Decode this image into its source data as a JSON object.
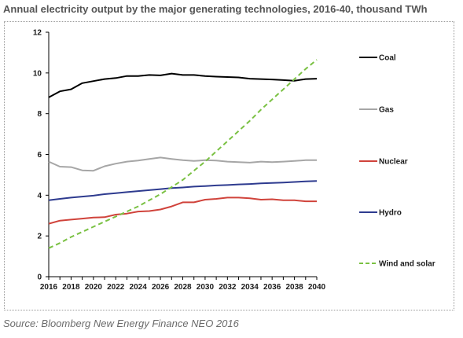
{
  "chart_data": {
    "type": "line",
    "title": "Annual electricity output by the major generating technologies, 2016-40, thousand TWh",
    "source": "Source: Bloomberg New Energy Finance NEO 2016",
    "xlabel": "",
    "ylabel": "",
    "x": [
      2016,
      2017,
      2018,
      2019,
      2020,
      2021,
      2022,
      2023,
      2024,
      2025,
      2026,
      2027,
      2028,
      2029,
      2030,
      2031,
      2032,
      2033,
      2034,
      2035,
      2036,
      2037,
      2038,
      2039,
      2040
    ],
    "xticks": [
      2016,
      2018,
      2020,
      2022,
      2024,
      2026,
      2028,
      2030,
      2032,
      2034,
      2036,
      2038,
      2040
    ],
    "ylim": [
      0,
      12
    ],
    "yticks": [
      0,
      2,
      4,
      6,
      8,
      10,
      12
    ],
    "grid": false,
    "legend_position": "right",
    "series": [
      {
        "name": "Coal",
        "color": "#000000",
        "dash": "solid",
        "values": [
          8.8,
          9.1,
          9.2,
          9.5,
          9.6,
          9.7,
          9.75,
          9.85,
          9.85,
          9.9,
          9.88,
          9.97,
          9.9,
          9.9,
          9.85,
          9.82,
          9.8,
          9.78,
          9.72,
          9.7,
          9.68,
          9.65,
          9.62,
          9.7,
          9.72
        ]
      },
      {
        "name": "Gas",
        "color": "#a6a6a6",
        "dash": "solid",
        "values": [
          5.65,
          5.4,
          5.38,
          5.22,
          5.2,
          5.42,
          5.55,
          5.65,
          5.7,
          5.78,
          5.85,
          5.78,
          5.72,
          5.68,
          5.72,
          5.7,
          5.65,
          5.62,
          5.6,
          5.65,
          5.62,
          5.65,
          5.68,
          5.72,
          5.72
        ]
      },
      {
        "name": "Nuclear",
        "color": "#d0433b",
        "dash": "solid",
        "values": [
          2.6,
          2.75,
          2.8,
          2.85,
          2.9,
          2.92,
          3.05,
          3.1,
          3.2,
          3.22,
          3.3,
          3.45,
          3.65,
          3.65,
          3.78,
          3.82,
          3.88,
          3.88,
          3.85,
          3.78,
          3.8,
          3.75,
          3.75,
          3.7,
          3.7
        ]
      },
      {
        "name": "Hydro",
        "color": "#2e3b8f",
        "dash": "solid",
        "values": [
          3.75,
          3.82,
          3.88,
          3.93,
          3.98,
          4.05,
          4.1,
          4.15,
          4.2,
          4.25,
          4.3,
          4.35,
          4.38,
          4.42,
          4.45,
          4.48,
          4.5,
          4.53,
          4.55,
          4.58,
          4.6,
          4.62,
          4.65,
          4.68,
          4.7
        ]
      },
      {
        "name": "Wind and solar",
        "color": "#7ac143",
        "dash": "dashed",
        "values": [
          1.4,
          1.65,
          1.95,
          2.2,
          2.45,
          2.7,
          2.95,
          3.2,
          3.45,
          3.75,
          4.05,
          4.4,
          4.75,
          5.2,
          5.65,
          6.15,
          6.65,
          7.15,
          7.65,
          8.2,
          8.7,
          9.2,
          9.7,
          10.2,
          10.65
        ]
      }
    ]
  }
}
